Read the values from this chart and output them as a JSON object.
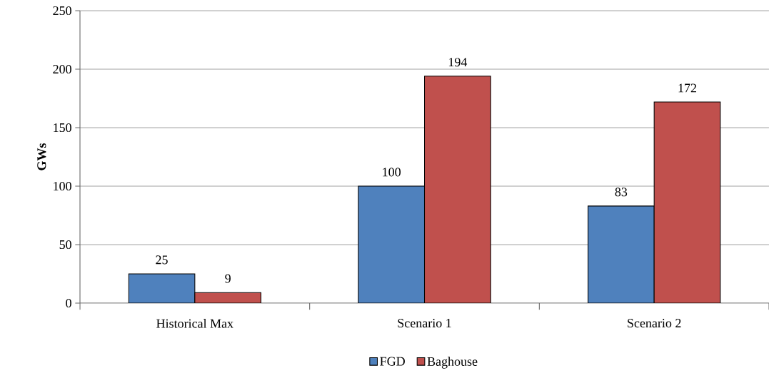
{
  "chart_data": {
    "type": "bar",
    "ylabel": "GWs",
    "categories": [
      "Historical Max",
      "Scenario 1",
      "Scenario 2"
    ],
    "series": [
      {
        "name": "FGD",
        "color": "#4f81bd",
        "values": [
          25,
          100,
          83
        ]
      },
      {
        "name": "Baghouse",
        "color": "#c0504d",
        "values": [
          9,
          194,
          172
        ]
      }
    ],
    "ylim": [
      0,
      250
    ],
    "yticks": [
      0,
      50,
      100,
      150,
      200,
      250
    ],
    "grid": "y",
    "legend": "bottom",
    "data_labels": true
  }
}
